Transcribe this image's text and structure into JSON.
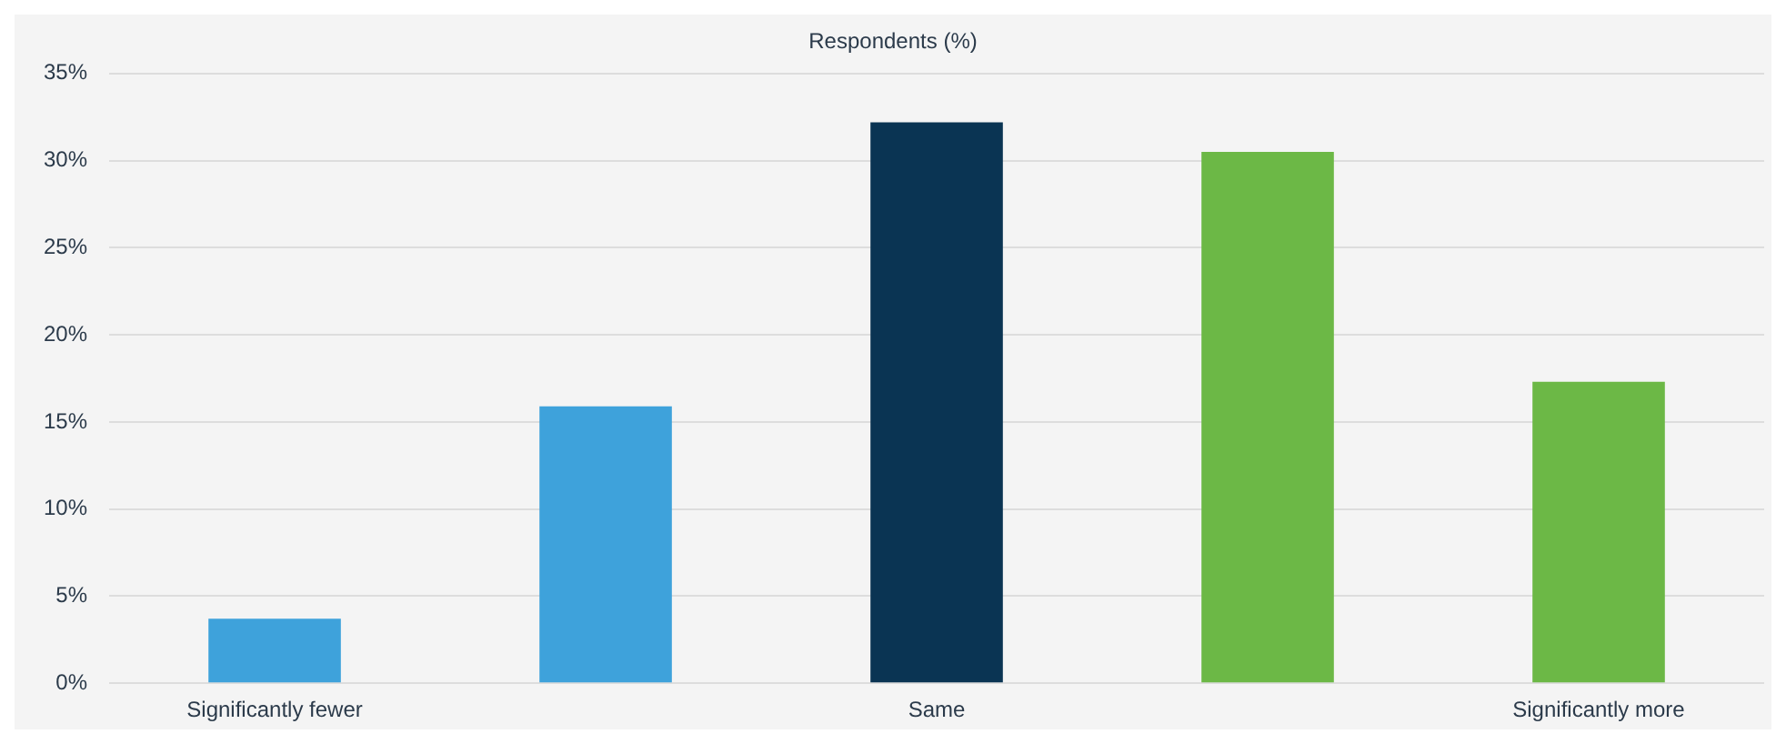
{
  "chart_data": {
    "type": "bar",
    "title": "Respondents (%)",
    "categories": [
      "Significantly fewer",
      null,
      "Same",
      null,
      "Significantly more"
    ],
    "values": [
      3.7,
      15.9,
      32.2,
      30.5,
      17.3
    ],
    "colors": [
      "#3ea2db",
      "#3ea2db",
      "#0a3453",
      "#6cb846",
      "#6cb846"
    ],
    "ylim": [
      0,
      35
    ],
    "yticks": [
      {
        "value": 0,
        "label": "0%"
      },
      {
        "value": 5,
        "label": "5%"
      },
      {
        "value": 10,
        "label": "10%"
      },
      {
        "value": 15,
        "label": "15%"
      },
      {
        "value": 20,
        "label": "20%"
      },
      {
        "value": 25,
        "label": "25%"
      },
      {
        "value": 30,
        "label": "30%"
      },
      {
        "value": 35,
        "label": "35%"
      }
    ],
    "grid": "y",
    "legend": false
  }
}
